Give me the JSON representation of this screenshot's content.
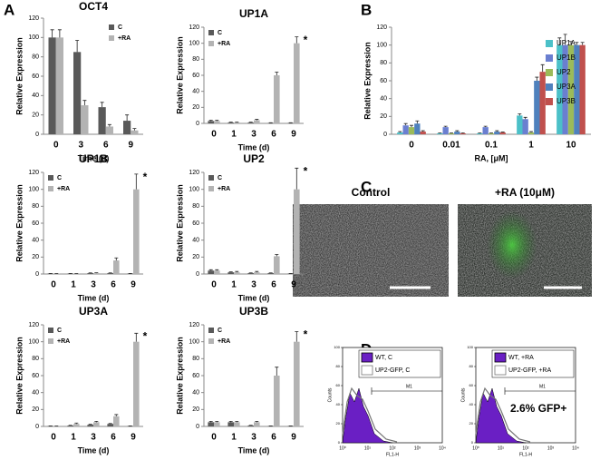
{
  "panel_labels": [
    "A",
    "B",
    "C",
    "D"
  ],
  "chart_data": [
    {
      "type": "bar",
      "title": "OCT4",
      "x_label": "Time (d)",
      "y_label": "Relative Expression",
      "categories": [
        "0",
        "3",
        "6",
        "9"
      ],
      "series": [
        {
          "name": "C",
          "color": "#595959",
          "values": [
            100,
            85,
            28,
            14
          ],
          "errors": [
            8,
            12,
            5,
            6
          ]
        },
        {
          "name": "+RA",
          "color": "#b3b3b3",
          "values": [
            100,
            30,
            8,
            4
          ],
          "errors": [
            8,
            5,
            2,
            2
          ]
        }
      ],
      "ylim": [
        0,
        120
      ],
      "yticks": [
        0,
        20,
        40,
        60,
        80,
        100,
        120
      ],
      "legend": "upper right"
    },
    {
      "type": "bar",
      "title": "UP1A",
      "x_label": "Time (d)",
      "y_label": "Relative Expression",
      "categories": [
        "0",
        "1",
        "3",
        "6",
        "9"
      ],
      "series": [
        {
          "name": "C",
          "color": "#595959",
          "values": [
            3,
            1,
            1,
            0.5,
            0.5
          ],
          "errors": [
            1,
            0.5,
            0.5,
            0.3,
            0.3
          ]
        },
        {
          "name": "+RA",
          "color": "#b3b3b3",
          "values": [
            3,
            1,
            4,
            60,
            100
          ],
          "errors": [
            1,
            0.5,
            1,
            4,
            8
          ]
        }
      ],
      "ylim": [
        0,
        120
      ],
      "yticks": [
        0,
        20,
        40,
        60,
        80,
        100,
        120
      ],
      "legend": "upper left",
      "annotation": "*"
    },
    {
      "type": "bar",
      "title": "UP1B",
      "x_label": "Time (d)",
      "y_label": "Relative Expression",
      "categories": [
        "0",
        "1",
        "3",
        "6",
        "9"
      ],
      "series": [
        {
          "name": "C",
          "color": "#595959",
          "values": [
            0.5,
            0.5,
            1,
            1,
            0.5
          ],
          "errors": [
            0.2,
            0.2,
            0.3,
            0.3,
            0.2
          ]
        },
        {
          "name": "+RA",
          "color": "#b3b3b3",
          "values": [
            0.5,
            0.5,
            1,
            16,
            100
          ],
          "errors": [
            0.2,
            0.2,
            0.5,
            3,
            18
          ]
        }
      ],
      "ylim": [
        0,
        120
      ],
      "yticks": [
        0,
        20,
        40,
        60,
        80,
        100,
        120
      ],
      "legend": "upper left",
      "annotation": "*"
    },
    {
      "type": "bar",
      "title": "UP2",
      "x_label": "Time (d)",
      "y_label": "Relative Expression",
      "categories": [
        "0",
        "1",
        "3",
        "6",
        "9"
      ],
      "series": [
        {
          "name": "C",
          "color": "#595959",
          "values": [
            4,
            2,
            1,
            1,
            0.5
          ],
          "errors": [
            1,
            0.5,
            0.3,
            0.3,
            0.2
          ]
        },
        {
          "name": "+RA",
          "color": "#b3b3b3",
          "values": [
            4,
            2,
            2,
            21,
            100
          ],
          "errors": [
            1,
            1,
            1,
            2,
            25
          ]
        }
      ],
      "ylim": [
        0,
        120
      ],
      "yticks": [
        0,
        20,
        40,
        60,
        80,
        100,
        120
      ],
      "legend": "upper left",
      "annotation": "*"
    },
    {
      "type": "bar",
      "title": "UP3A",
      "x_label": "Time (d)",
      "y_label": "Relative Expression",
      "categories": [
        "0",
        "1",
        "3",
        "6",
        "9"
      ],
      "series": [
        {
          "name": "C",
          "color": "#595959",
          "values": [
            0.5,
            1,
            2,
            3,
            0.5
          ],
          "errors": [
            0.2,
            0.3,
            0.5,
            0.5,
            0.2
          ]
        },
        {
          "name": "+RA",
          "color": "#b3b3b3",
          "values": [
            0.5,
            3,
            5,
            12,
            100
          ],
          "errors": [
            0.2,
            1,
            1,
            2,
            10
          ]
        }
      ],
      "ylim": [
        0,
        120
      ],
      "yticks": [
        0,
        20,
        40,
        60,
        80,
        100,
        120
      ],
      "legend": "upper left",
      "annotation": "*"
    },
    {
      "type": "bar",
      "title": "UP3B",
      "x_label": "Time (d)",
      "y_label": "Relative Expression",
      "categories": [
        "0",
        "1",
        "3",
        "6",
        "9"
      ],
      "series": [
        {
          "name": "C",
          "color": "#595959",
          "values": [
            5,
            5,
            1,
            0.5,
            0.5
          ],
          "errors": [
            1,
            1,
            0.3,
            0.2,
            0.2
          ]
        },
        {
          "name": "+RA",
          "color": "#b3b3b3",
          "values": [
            5,
            5,
            5,
            60,
            100
          ],
          "errors": [
            1,
            1,
            1,
            10,
            12
          ]
        }
      ],
      "ylim": [
        0,
        120
      ],
      "yticks": [
        0,
        20,
        40,
        60,
        80,
        100,
        120
      ],
      "legend": "upper left",
      "annotation": "*"
    },
    {
      "type": "bar",
      "x_label": "RA, [μM]",
      "y_label": "Relative Expression",
      "categories": [
        "0",
        "0.01",
        "0.1",
        "1",
        "10"
      ],
      "series": [
        {
          "name": "UP1A",
          "color": "#4bc0c8",
          "values": [
            2,
            1,
            1,
            21,
            100
          ],
          "errors": [
            1,
            0.5,
            0.5,
            2,
            8
          ]
        },
        {
          "name": "UP1B",
          "color": "#6a7fd0",
          "values": [
            10,
            8,
            8,
            17,
            100
          ],
          "errors": [
            2,
            1,
            1,
            2,
            12
          ]
        },
        {
          "name": "UP2",
          "color": "#9bbb59",
          "values": [
            8,
            1,
            1,
            2,
            100
          ],
          "errors": [
            2,
            0.5,
            0.5,
            1,
            4
          ]
        },
        {
          "name": "UP3A",
          "color": "#4f81bd",
          "values": [
            12,
            3,
            3,
            60,
            100
          ],
          "errors": [
            3,
            1,
            1,
            4,
            3
          ]
        },
        {
          "name": "UP3B",
          "color": "#c0504d",
          "values": [
            3,
            1,
            2,
            70,
            100
          ],
          "errors": [
            1,
            0.5,
            0.5,
            8,
            3
          ]
        }
      ],
      "ylim": [
        0,
        120
      ],
      "yticks": [
        0,
        20,
        40,
        60,
        80,
        100,
        120
      ],
      "legend": "upper right"
    }
  ],
  "images": [
    {
      "label": "Control"
    },
    {
      "label": "+RA (10μM)"
    }
  ],
  "flow": {
    "y_label": "Counts",
    "x_label": "FL1-H",
    "gate_label": "M1",
    "xticks": [
      "10⁰",
      "10¹",
      "10²",
      "10³",
      "10⁴"
    ],
    "yticks": [
      0,
      20,
      40,
      60,
      80,
      100
    ],
    "panels": [
      {
        "legend": [
          "WT, C",
          "UP2-GFP, C"
        ]
      },
      {
        "legend": [
          "WT, +RA",
          "UP2-GFP, +RA"
        ],
        "annotation": "2.6% GFP+"
      }
    ]
  }
}
